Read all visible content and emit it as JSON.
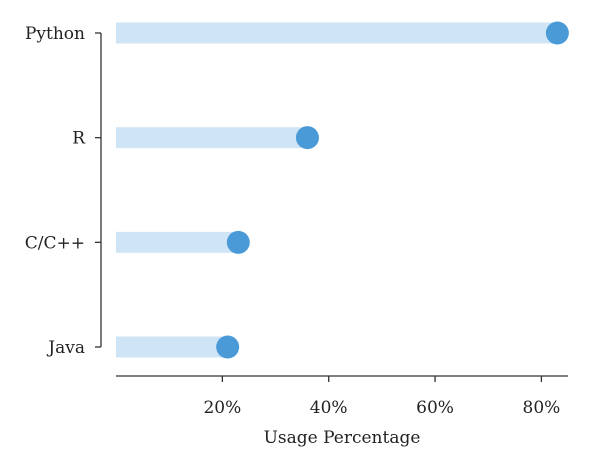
{
  "chart_data": {
    "type": "bar",
    "style": "lollipop",
    "orientation": "horizontal",
    "categories": [
      "Python",
      "R",
      "C/C++",
      "Java"
    ],
    "values": [
      83,
      36,
      23,
      21
    ],
    "xlabel": "Usage Percentage",
    "ylabel": "",
    "xlim": [
      0,
      85
    ],
    "xticks": [
      20,
      40,
      60,
      80
    ],
    "xtick_labels": [
      "20%",
      "40%",
      "60%",
      "80%"
    ],
    "grid": false,
    "legend": "none",
    "colors": {
      "bar": "#cfe5f5",
      "dot": "#4a9ad8",
      "axis": "#333333"
    }
  }
}
